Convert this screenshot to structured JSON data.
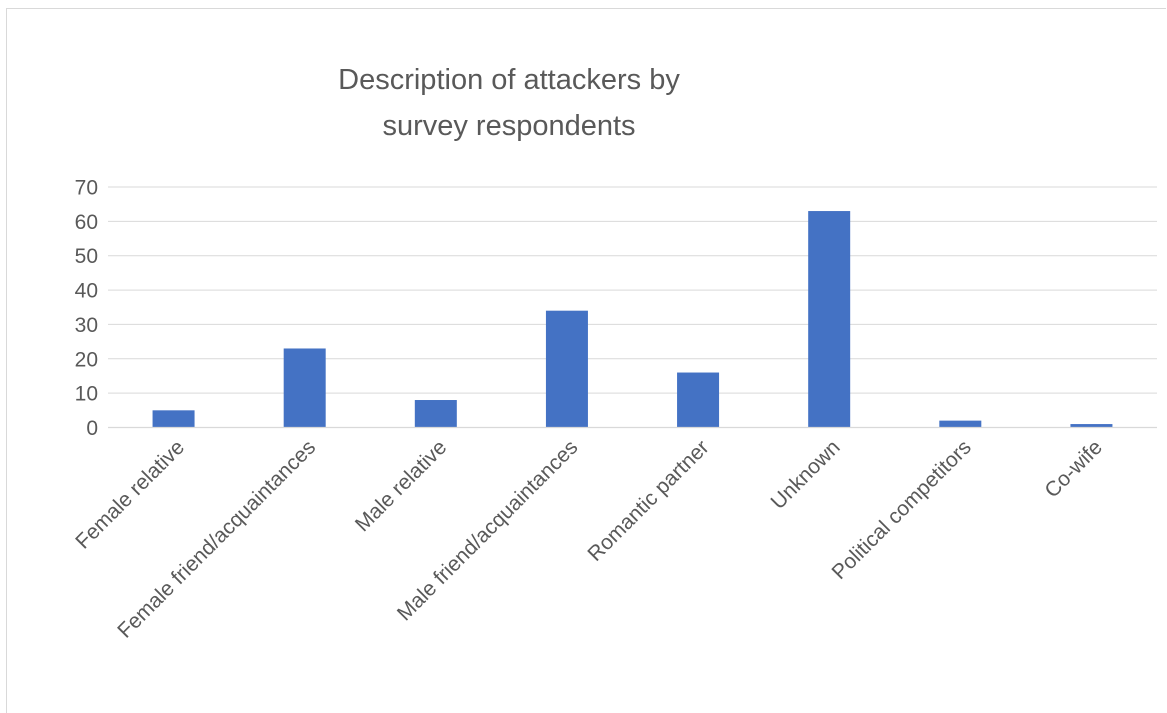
{
  "chart_data": {
    "type": "bar",
    "title_lines": [
      "Description of attackers by",
      "survey respondents"
    ],
    "categories": [
      "Female relative",
      "Female friend/acquaintances",
      "Male relative",
      "Male friend/acquaintances",
      "Romantic partner",
      "Unknown",
      "Political competitors",
      "Co-wife"
    ],
    "values": [
      5,
      23,
      8,
      34,
      16,
      63,
      2,
      1
    ],
    "ylim": [
      0,
      70
    ],
    "yticks": [
      0,
      10,
      20,
      30,
      40,
      50,
      60,
      70
    ],
    "xlabel": "",
    "ylabel": "",
    "grid": true,
    "legend": "none",
    "bar_color": "#4472c4"
  }
}
